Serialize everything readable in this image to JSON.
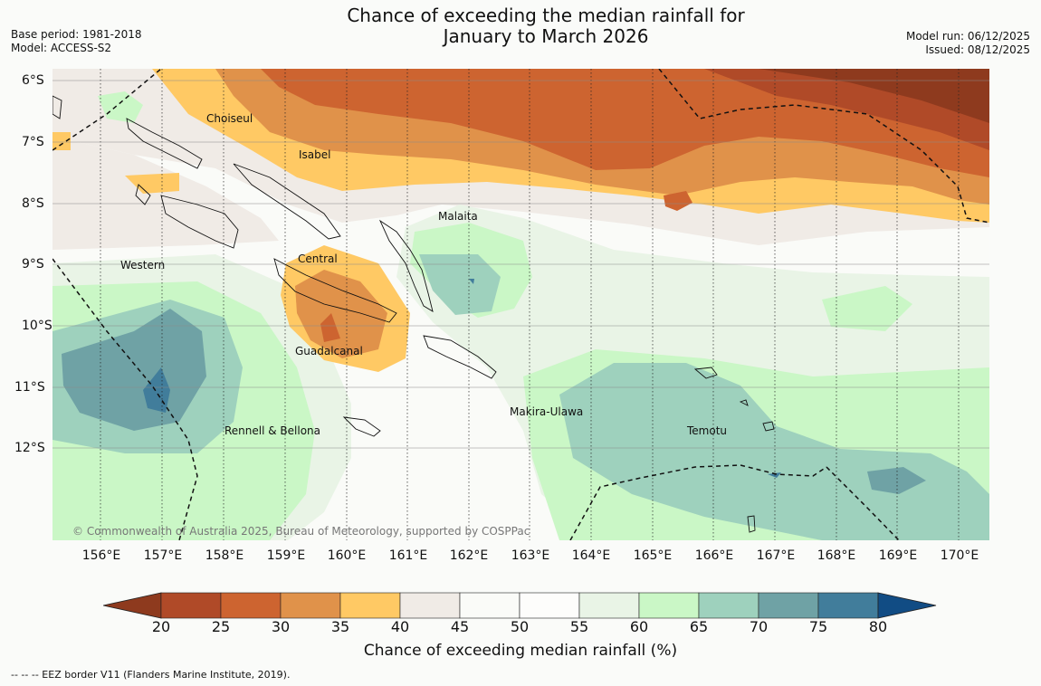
{
  "title": {
    "line1": "Chance of exceeding the median rainfall for",
    "line2": "January to March 2026"
  },
  "meta": {
    "base_period": "Base period: 1981-2018",
    "model": "Model: ACCESS-S2",
    "model_run": "Model run: 06/12/2025",
    "issued": "Issued: 08/12/2025"
  },
  "map": {
    "lat_labels": [
      "6°S",
      "7°S",
      "8°S",
      "9°S",
      "10°S",
      "11°S",
      "12°S"
    ],
    "lon_labels": [
      "156°E",
      "157°E",
      "158°E",
      "159°E",
      "160°E",
      "161°E",
      "162°E",
      "163°E",
      "164°E",
      "165°E",
      "166°E",
      "167°E",
      "168°E",
      "169°E",
      "170°E"
    ],
    "places": [
      "Choiseul",
      "Isabel",
      "Malaita",
      "Western",
      "Central",
      "Guadalcanal",
      "Makira-Ulawa",
      "Rennell & Bellona",
      "Temotu"
    ],
    "copyright": "© Commonwealth of Australia 2025, Bureau of Meteorology, supported by COSPPac"
  },
  "legend": {
    "ticks": [
      "20",
      "25",
      "30",
      "35",
      "40",
      "45",
      "50",
      "55",
      "60",
      "65",
      "70",
      "75",
      "80"
    ],
    "colors": [
      "#8e3a1e",
      "#b04a28",
      "#cd6430",
      "#e0924a",
      "#ffc964",
      "#f0ebe6",
      "#fafbf8",
      "#fdfdfb",
      "#e9f4e6",
      "#caf7c6",
      "#9ed1bd",
      "#6fa2a5",
      "#417d9b",
      "#114c84"
    ],
    "label": "Chance of exceeding median rainfall (%)"
  },
  "footnote": "--  --  -- EEZ border V11 (Flanders Marine Institute, 2019)."
}
